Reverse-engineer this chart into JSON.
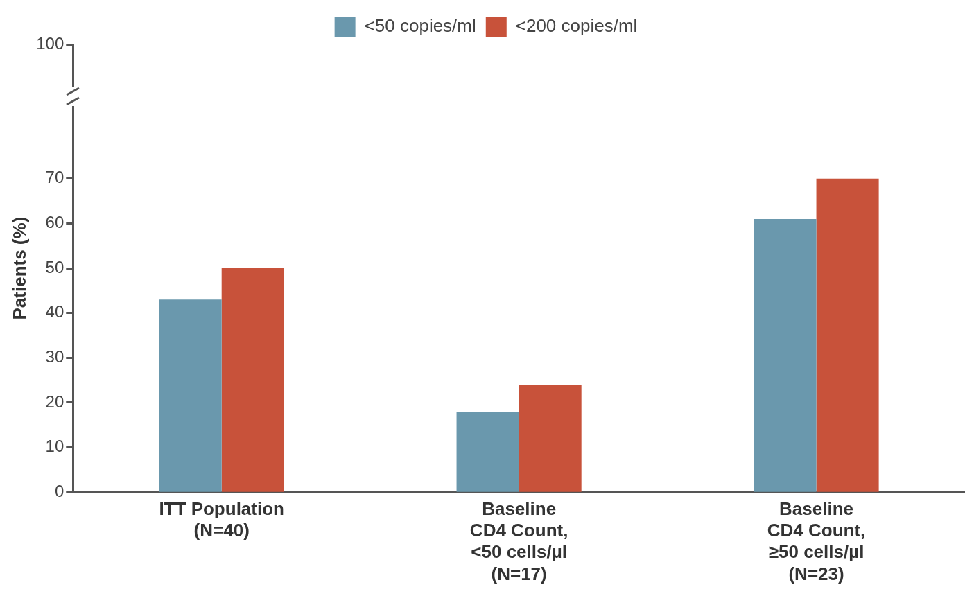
{
  "chart_data": {
    "type": "bar",
    "ylabel": "Patients (%)",
    "categories": [
      "ITT Population\n(N=40)",
      "Baseline\nCD4 Count,\n<50 cells/µl\n(N=17)",
      "Baseline\nCD4 Count,\n≥50 cells/µl\n(N=23)"
    ],
    "series": [
      {
        "name": "<50 copies/ml",
        "color": "#6a98ad",
        "values": [
          43,
          18,
          61
        ]
      },
      {
        "name": "<200 copies/ml",
        "color": "#c8523a",
        "values": [
          50,
          24,
          70
        ]
      }
    ],
    "ylim": [
      0,
      100
    ],
    "yticks": [
      0,
      10,
      20,
      30,
      40,
      50,
      60,
      70,
      100
    ],
    "grid": false,
    "legend": "top"
  }
}
